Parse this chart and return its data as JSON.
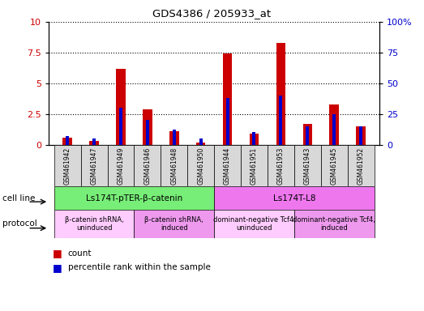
{
  "title": "GDS4386 / 205933_at",
  "samples": [
    "GSM461942",
    "GSM461947",
    "GSM461949",
    "GSM461946",
    "GSM461948",
    "GSM461950",
    "GSM461944",
    "GSM461951",
    "GSM461953",
    "GSM461943",
    "GSM461945",
    "GSM461952"
  ],
  "count_values": [
    0.55,
    0.28,
    6.2,
    2.85,
    1.1,
    0.18,
    7.4,
    0.9,
    8.3,
    1.7,
    3.3,
    1.5
  ],
  "percentile_values": [
    7,
    5,
    30,
    20,
    12,
    5,
    38,
    10,
    40,
    15,
    25,
    15
  ],
  "ylim_left": [
    0,
    10
  ],
  "ylim_right": [
    0,
    100
  ],
  "yticks_left": [
    0,
    2.5,
    5.0,
    7.5,
    10
  ],
  "yticks_right": [
    0,
    25,
    50,
    75,
    100
  ],
  "bar_color_count": "#cc0000",
  "bar_color_percentile": "#0000cc",
  "cell_line_groups": [
    {
      "label": "Ls174T-pTER-β-catenin",
      "start": 0,
      "end": 6,
      "color": "#77ee77"
    },
    {
      "label": "Ls174T-L8",
      "start": 6,
      "end": 12,
      "color": "#ee77ee"
    }
  ],
  "protocol_groups": [
    {
      "label": "β-catenin shRNA,\nuninduced",
      "start": 0,
      "end": 3,
      "color": "#ffccff"
    },
    {
      "label": "β-catenin shRNA,\ninduced",
      "start": 3,
      "end": 6,
      "color": "#ee99ee"
    },
    {
      "label": "dominant-negative Tcf4,\nuninduced",
      "start": 6,
      "end": 9,
      "color": "#ffccff"
    },
    {
      "label": "dominant-negative Tcf4,\ninduced",
      "start": 9,
      "end": 12,
      "color": "#ee99ee"
    }
  ],
  "background_color": "#ffffff",
  "tick_label_color_left": "#cc0000",
  "tick_label_color_right": "#0000cc",
  "red_bar_width": 0.35,
  "blue_bar_width": 0.12
}
